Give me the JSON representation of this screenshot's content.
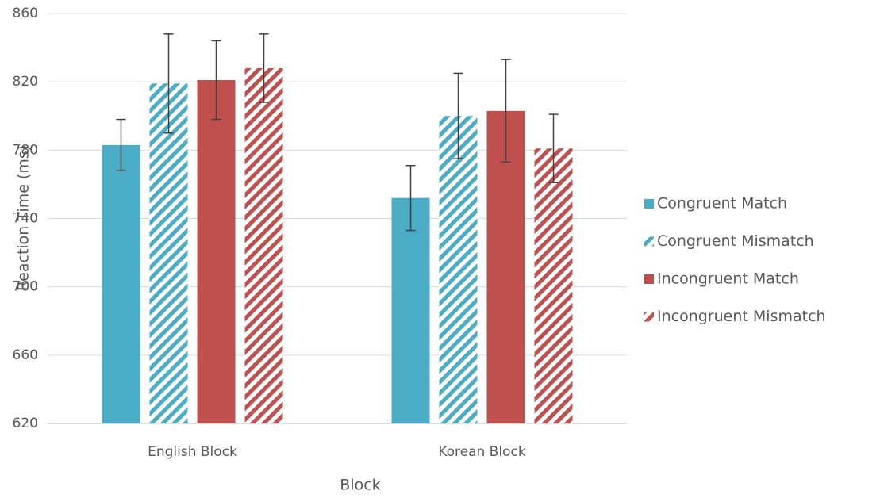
{
  "chart_data": {
    "type": "bar",
    "x_label": "Block",
    "y_label": "Reaction Time (ms)",
    "categories": [
      "English Block",
      "Korean Block"
    ],
    "series": [
      {
        "name": "Congruent Match",
        "color": "#4bacc6",
        "hatch": false,
        "values": [
          783,
          752
        ],
        "errors": [
          15,
          19
        ]
      },
      {
        "name": "Congruent Mismatch",
        "color": "#4bacc6",
        "hatch": true,
        "values": [
          819,
          800
        ],
        "errors": [
          29,
          25
        ]
      },
      {
        "name": "Incongruent Match",
        "color": "#c0504d",
        "hatch": false,
        "values": [
          821,
          803
        ],
        "errors": [
          23,
          30
        ]
      },
      {
        "name": "Incongruent Mismatch",
        "color": "#c0504d",
        "hatch": true,
        "values": [
          828,
          781
        ],
        "errors": [
          20,
          20
        ]
      }
    ],
    "ylim": [
      620,
      860
    ],
    "yticks": [
      620,
      660,
      700,
      740,
      780,
      820,
      860
    ],
    "grid": true,
    "legend": "right"
  }
}
